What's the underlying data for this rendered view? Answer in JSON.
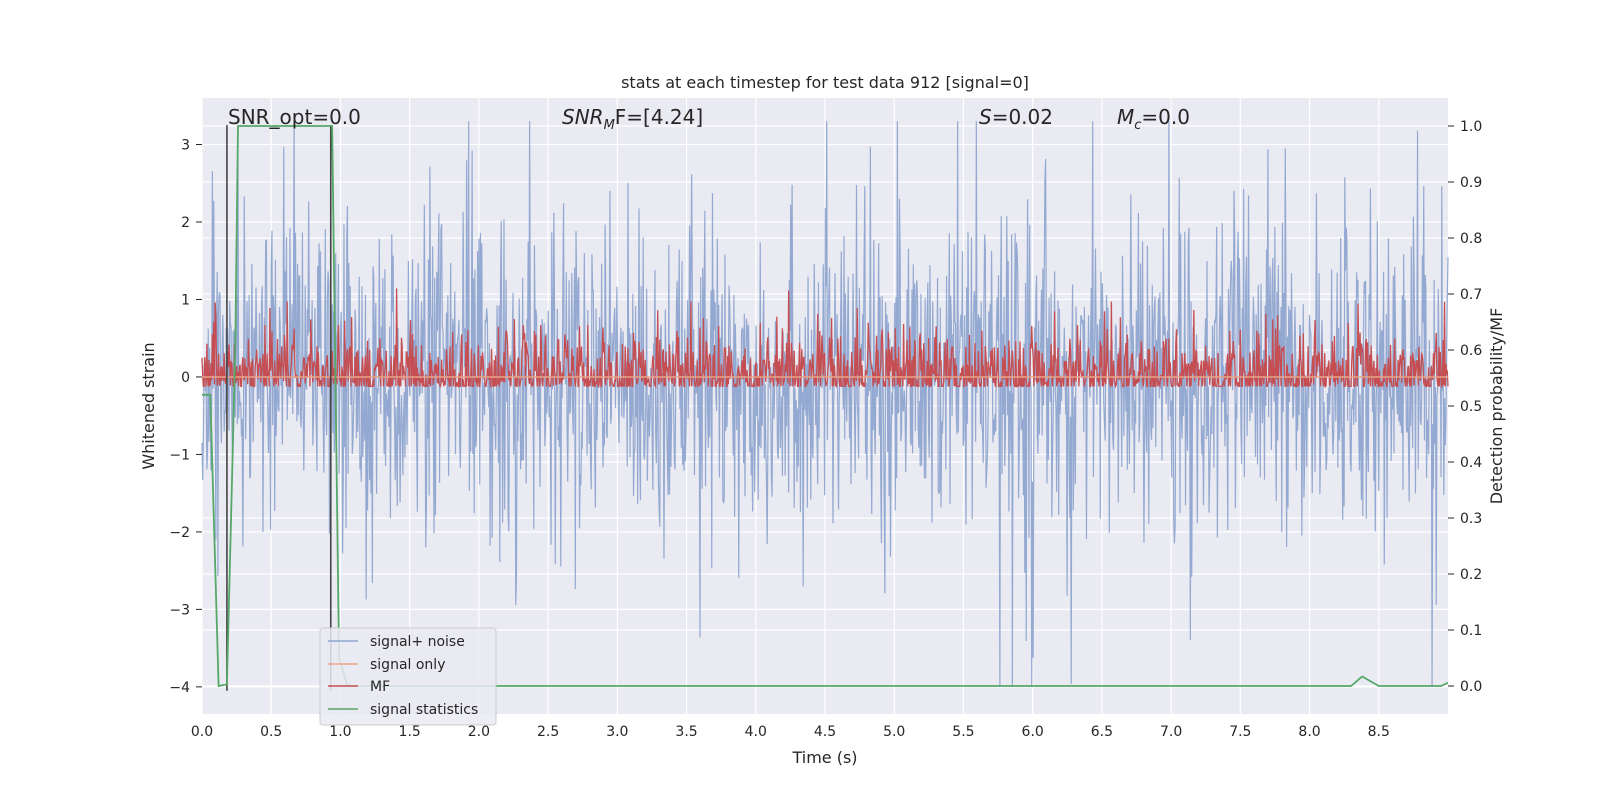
{
  "chart_data": {
    "type": "line",
    "title": "stats at each timestep for test data 912 [signal=0]",
    "xlabel": "Time (s)",
    "ylabel_left": "Whitened strain",
    "ylabel_right": "Detection probability/MF",
    "xlim": [
      0.0,
      9.0
    ],
    "ylim_left": [
      -4.35,
      3.6
    ],
    "ylim_right": [
      -0.05,
      1.05
    ],
    "x_ticks": [
      "0.0",
      "0.5",
      "1.0",
      "1.5",
      "2.0",
      "2.5",
      "3.0",
      "3.5",
      "4.0",
      "4.5",
      "5.0",
      "5.5",
      "6.0",
      "6.5",
      "7.0",
      "7.5",
      "8.0",
      "8.5"
    ],
    "x_tick_values": [
      0.0,
      0.5,
      1.0,
      1.5,
      2.0,
      2.5,
      3.0,
      3.5,
      4.0,
      4.5,
      5.0,
      5.5,
      6.0,
      6.5,
      7.0,
      7.5,
      8.0,
      8.5
    ],
    "y_left_ticks": [
      "−4",
      "−3",
      "−2",
      "−1",
      "0",
      "1",
      "2",
      "3"
    ],
    "y_left_tick_values": [
      -4,
      -3,
      -2,
      -1,
      0,
      1,
      2,
      3
    ],
    "y_right_ticks": [
      "0.0",
      "0.1",
      "0.2",
      "0.3",
      "0.4",
      "0.5",
      "0.6",
      "0.7",
      "0.8",
      "0.9",
      "1.0"
    ],
    "y_right_tick_values": [
      0.0,
      0.1,
      0.2,
      0.3,
      0.4,
      0.5,
      0.6,
      0.7,
      0.8,
      0.9,
      1.0
    ],
    "grid": true,
    "legend_placement": "lower-left",
    "annotations": {
      "snr_opt": "SNR_opt=0.0",
      "snr_mf_main": "SNR",
      "snr_mf_sub": "M",
      "snr_mf_rest": "F=[4.24]",
      "s_stat": "=0.02",
      "s_symbol": "S",
      "mc_symbol": "M",
      "mc_sub": "c",
      "mc_rest": "=0.0"
    },
    "series": [
      {
        "name": "signal+ noise",
        "color": "#8fa5cf",
        "axis": "left",
        "description_value": "noise amplitude about 1.0, peaks to 3.3 / -4.0"
      },
      {
        "name": "signal only",
        "color": "#e8a486",
        "axis": "left",
        "values_constant": 0.0
      },
      {
        "name": "MF",
        "color": "#c44e52",
        "axis": "right",
        "baseline": 0.55,
        "peak": 0.71
      },
      {
        "name": "signal statistics",
        "color": "#55a868",
        "axis": "right",
        "x": [
          0.0,
          0.06,
          0.12,
          0.18,
          0.24,
          0.26,
          0.94,
          0.99,
          1.05,
          8.3,
          8.38,
          8.5,
          8.95,
          9.0
        ],
        "values": [
          0.52,
          0.52,
          0.0,
          0.003,
          0.6,
          1.0,
          1.0,
          0.05,
          0.0,
          0.0,
          0.017,
          0.0,
          0.0,
          0.006
        ]
      }
    ],
    "vertical_markers": [
      0.18,
      0.93
    ],
    "marker_color": "#444444"
  }
}
